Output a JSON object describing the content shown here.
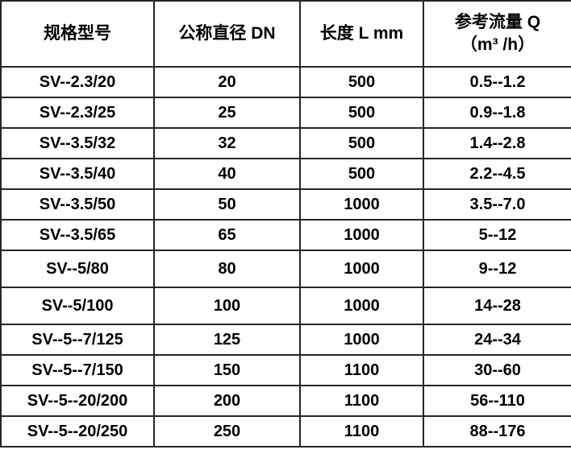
{
  "table": {
    "headers": {
      "spec_model": "规格型号",
      "nominal_diameter": "公称直径 DN",
      "length": "长度 L mm",
      "flow_line1": "参考流量 Q",
      "flow_line2": "（m³ /h）"
    },
    "rows": [
      [
        "SV--2.3/20",
        "20",
        "500",
        "0.5--1.2"
      ],
      [
        "SV--2.3/25",
        "25",
        "500",
        "0.9--1.8"
      ],
      [
        "SV--3.5/32",
        "32",
        "500",
        "1.4--2.8"
      ],
      [
        "SV--3.5/40",
        "40",
        "500",
        "2.2--4.5"
      ],
      [
        "SV--3.5/50",
        "50",
        "1000",
        "3.5--7.0"
      ],
      [
        "SV--3.5/65",
        "65",
        "1000",
        "5--12"
      ],
      [
        "SV--5/80",
        "80",
        "1000",
        "9--12"
      ],
      [
        "SV--5/100",
        "100",
        "1000",
        "14--28"
      ],
      [
        "SV--5--7/125",
        "125",
        "1000",
        "24--34"
      ],
      [
        "SV--5--7/150",
        "150",
        "1100",
        "30--60"
      ],
      [
        "SV--5--20/200",
        "200",
        "1100",
        "56--110"
      ],
      [
        "SV--5--20/250",
        "250",
        "1100",
        "88--176"
      ]
    ],
    "colors": {
      "border": "#262626",
      "text": "#000000",
      "background": "#ffffff"
    }
  }
}
